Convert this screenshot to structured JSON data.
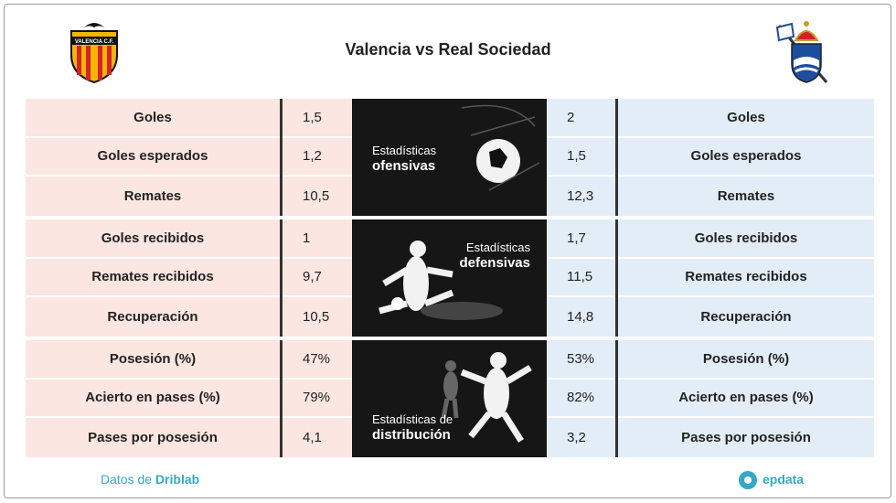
{
  "header": {
    "title": "Valencia vs Real Sociedad",
    "home_badge": "VALENCIA C.F."
  },
  "sections": [
    {
      "label_top": "Estadísticas",
      "label_bottom": "ofensivas",
      "rows": [
        {
          "stat": "Goles",
          "home": "1,5",
          "away": "2"
        },
        {
          "stat": "Goles esperados",
          "home": "1,2",
          "away": "1,5"
        },
        {
          "stat": "Remates",
          "home": "10,5",
          "away": "12,3"
        }
      ]
    },
    {
      "label_top": "Estadísticas",
      "label_bottom": "defensivas",
      "rows": [
        {
          "stat": "Goles recibidos",
          "home": "1",
          "away": "1,7"
        },
        {
          "stat": "Remates recibidos",
          "home": "9,7",
          "away": "11,5"
        },
        {
          "stat": "Recuperación",
          "home": "10,5",
          "away": "14,8"
        }
      ]
    },
    {
      "label_top": "Estadísticas de",
      "label_bottom": "distribución",
      "rows": [
        {
          "stat": "Posesión (%)",
          "home": "47%",
          "away": "53%"
        },
        {
          "stat": "Acierto en pases (%)",
          "home": "79%",
          "away": "82%"
        },
        {
          "stat": "Pases por posesión",
          "home": "4,1",
          "away": "3,2"
        }
      ]
    }
  ],
  "footer": {
    "source_prefix": "Datos de",
    "source_name": "Driblab",
    "brand": "epdata"
  }
}
